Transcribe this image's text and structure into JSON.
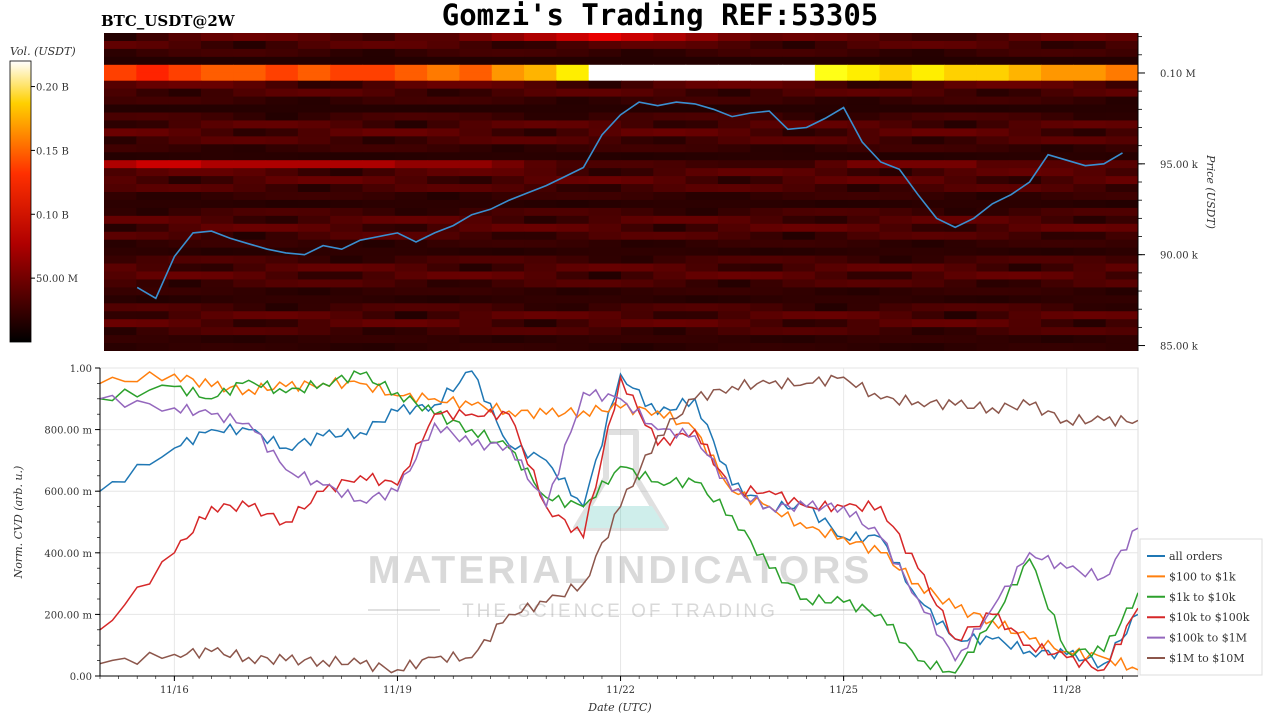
{
  "header": {
    "ticker": "BTC_USDT@2W",
    "title": "Gomzi's Trading REF:53305"
  },
  "watermark": {
    "main": "MATERIAL INDICATORS",
    "sub": "THE SCIENCE OF TRADING"
  },
  "chart_data": [
    {
      "type": "heatmap",
      "panel": "top",
      "colorbar": {
        "label": "Vol. (USDT)",
        "ticks": [
          "0.20 B",
          "0.15 B",
          "0.10 B",
          "50.00 M"
        ],
        "tick_values": [
          0.2,
          0.15,
          0.1,
          0.05
        ],
        "range": [
          0,
          0.22
        ],
        "colormap": "hot"
      },
      "y_axis": {
        "label": "Price (USDT)",
        "side": "right",
        "ticks": [
          "0.10 M",
          "95.00 k",
          "90.00 k",
          "85.00 k"
        ],
        "tick_values": [
          100000,
          95000,
          90000,
          85000
        ],
        "range": [
          84700,
          102200
        ]
      },
      "x_range_days": "11/15 – 11/28",
      "price_series": {
        "name": "",
        "color": "#3a8fd0",
        "dates": [
          "11/15 12:00",
          "11/15 18:00",
          "11/16 00:00",
          "11/16 06:00",
          "11/16 12:00",
          "11/16 18:00",
          "11/17 00:00",
          "11/17 06:00",
          "11/17 12:00",
          "11/17 18:00",
          "11/18 00:00",
          "11/18 06:00",
          "11/18 12:00",
          "11/18 18:00",
          "11/19 00:00",
          "11/19 06:00",
          "11/19 12:00",
          "11/19 18:00",
          "11/20 00:00",
          "11/20 06:00",
          "11/20 12:00",
          "11/20 18:00",
          "11/21 00:00",
          "11/21 06:00",
          "11/21 12:00",
          "11/21 18:00",
          "11/22 00:00",
          "11/22 06:00",
          "11/22 12:00",
          "11/22 18:00",
          "11/23 00:00",
          "11/23 06:00",
          "11/23 12:00",
          "11/23 18:00",
          "11/24 00:00",
          "11/24 06:00",
          "11/24 12:00",
          "11/24 18:00",
          "11/25 00:00",
          "11/25 06:00",
          "11/25 12:00",
          "11/25 18:00",
          "11/26 00:00",
          "11/26 06:00",
          "11/26 12:00",
          "11/26 18:00",
          "11/27 00:00",
          "11/27 06:00",
          "11/27 12:00",
          "11/27 18:00",
          "11/28 00:00",
          "11/28 06:00",
          "11/28 12:00",
          "11/28 18:00"
        ],
        "values": [
          88200,
          87600,
          89900,
          91200,
          91300,
          90900,
          90600,
          90300,
          90100,
          90000,
          90500,
          90300,
          90800,
          91000,
          91200,
          90700,
          91200,
          91600,
          92200,
          92500,
          93000,
          93400,
          93800,
          94300,
          94800,
          96600,
          97700,
          98400,
          98200,
          98400,
          98300,
          98000,
          97600,
          97800,
          97900,
          96900,
          97000,
          97500,
          98100,
          96200,
          95100,
          94700,
          93300,
          92000,
          91500,
          92000,
          92800,
          93300,
          94000,
          95500,
          95200,
          94900,
          95000,
          95600
        ]
      },
      "liquidity_bands": [
        {
          "price": 100000,
          "intensity": [
            0.11,
            0.1,
            0.11,
            0.12,
            0.12,
            0.11,
            0.12,
            0.11,
            0.11,
            0.12,
            0.13,
            0.12,
            0.14,
            0.15,
            0.17,
            0.22,
            0.22,
            0.22,
            0.22,
            0.22,
            0.22,
            0.22,
            0.18,
            0.17,
            0.16,
            0.17,
            0.16,
            0.16,
            0.15,
            0.14,
            0.14,
            0.13
          ]
        },
        {
          "price": 102000,
          "intensity": [
            0.01,
            0.01,
            0.01,
            0.02,
            0.02,
            0.02,
            0.02,
            0.02,
            0.02,
            0.03,
            0.03,
            0.04,
            0.05,
            0.06,
            0.07,
            0.08,
            0.07,
            0.06,
            0.05,
            0.04,
            0.03,
            0.02,
            0.02,
            0.02,
            0.02,
            0.02,
            0.02,
            0.01,
            0.01,
            0.01,
            0.01,
            0.01
          ]
        },
        {
          "price": 95000,
          "intensity": [
            0.06,
            0.07,
            0.07,
            0.06,
            0.06,
            0.06,
            0.06,
            0.06,
            0.06,
            0.05,
            0.05,
            0.05,
            0.04,
            0.03,
            0.02,
            0.02,
            0.02,
            0.02,
            0.02,
            0.02,
            0.02,
            0.02,
            0.03,
            0.04,
            0.04,
            0.04,
            0.04,
            0.03,
            0.03,
            0.03,
            0.03,
            0.03
          ]
        }
      ]
    },
    {
      "type": "line",
      "panel": "bottom",
      "xlabel": "Date (UTC)",
      "ylabel": "Norm. CVD (arb. u.)",
      "x_ticks": [
        "11/16",
        "11/19",
        "11/22",
        "11/25",
        "11/28"
      ],
      "x_tick_values": [
        "11/16",
        "11/19",
        "11/22",
        "11/25",
        "11/28"
      ],
      "x_range": [
        "11/15 00:00",
        "11/28 23:00"
      ],
      "y_ticks": [
        "0.00",
        "200.00 m",
        "400.00 m",
        "600.00 m",
        "800.00 m",
        "1.00"
      ],
      "y_tick_values": [
        0,
        0.2,
        0.4,
        0.6,
        0.8,
        1.0
      ],
      "ylim": [
        0,
        1
      ],
      "grid": true,
      "legend_position": "right",
      "x": [
        "11/15",
        "11/16",
        "11/16 12:00",
        "11/17",
        "11/17 12:00",
        "11/18",
        "11/18 12:00",
        "11/19",
        "11/19 12:00",
        "11/20",
        "11/20 12:00",
        "11/21",
        "11/21 12:00",
        "11/22",
        "11/22 12:00",
        "11/23",
        "11/23 12:00",
        "11/24",
        "11/24 12:00",
        "11/25",
        "11/25 12:00",
        "11/26",
        "11/26 12:00",
        "11/27",
        "11/27 12:00",
        "11/28",
        "11/28 12:00",
        "11/28 23:00"
      ],
      "series": [
        {
          "name": "all orders",
          "color": "#1f77b4",
          "values": [
            0.6,
            0.74,
            0.8,
            0.8,
            0.74,
            0.78,
            0.79,
            0.86,
            0.88,
            0.99,
            0.75,
            0.7,
            0.55,
            0.98,
            0.85,
            0.9,
            0.62,
            0.55,
            0.55,
            0.45,
            0.45,
            0.25,
            0.12,
            0.12,
            0.08,
            0.07,
            0.04,
            0.2
          ]
        },
        {
          "name": "$100 to $1k",
          "color": "#ff7f0e",
          "values": [
            0.95,
            0.98,
            0.94,
            0.93,
            0.94,
            0.95,
            0.95,
            0.91,
            0.9,
            0.88,
            0.86,
            0.85,
            0.86,
            0.87,
            0.86,
            0.8,
            0.6,
            0.55,
            0.48,
            0.45,
            0.4,
            0.3,
            0.22,
            0.18,
            0.12,
            0.08,
            0.06,
            0.02
          ]
        },
        {
          "name": "$1k to $10k",
          "color": "#2ca02c",
          "values": [
            0.9,
            0.94,
            0.9,
            0.96,
            0.92,
            0.95,
            0.98,
            0.92,
            0.85,
            0.8,
            0.74,
            0.58,
            0.55,
            0.68,
            0.63,
            0.63,
            0.52,
            0.35,
            0.25,
            0.24,
            0.2,
            0.05,
            0.01,
            0.18,
            0.38,
            0.08,
            0.08,
            0.27
          ]
        },
        {
          "name": "$10k to $100k",
          "color": "#d62728",
          "values": [
            0.15,
            0.4,
            0.55,
            0.55,
            0.5,
            0.6,
            0.65,
            0.62,
            0.85,
            0.85,
            0.85,
            0.55,
            0.45,
            0.97,
            0.75,
            0.8,
            0.6,
            0.6,
            0.55,
            0.55,
            0.55,
            0.35,
            0.12,
            0.2,
            0.1,
            0.06,
            0.02,
            0.22
          ]
        },
        {
          "name": "$100k to $1M",
          "color": "#9467bd",
          "values": [
            0.9,
            0.87,
            0.85,
            0.82,
            0.67,
            0.62,
            0.57,
            0.6,
            0.82,
            0.75,
            0.75,
            0.55,
            0.92,
            0.9,
            0.8,
            0.78,
            0.6,
            0.55,
            0.55,
            0.55,
            0.45,
            0.25,
            0.05,
            0.22,
            0.4,
            0.35,
            0.32,
            0.48
          ]
        },
        {
          "name": "$1M to $10M",
          "color": "#8c564b",
          "values": [
            0.04,
            0.07,
            0.08,
            0.06,
            0.05,
            0.05,
            0.04,
            0.02,
            0.06,
            0.06,
            0.2,
            0.24,
            0.3,
            0.55,
            0.78,
            0.9,
            0.94,
            0.95,
            0.95,
            0.97,
            0.9,
            0.89,
            0.88,
            0.87,
            0.88,
            0.83,
            0.83,
            0.83
          ]
        }
      ]
    }
  ]
}
